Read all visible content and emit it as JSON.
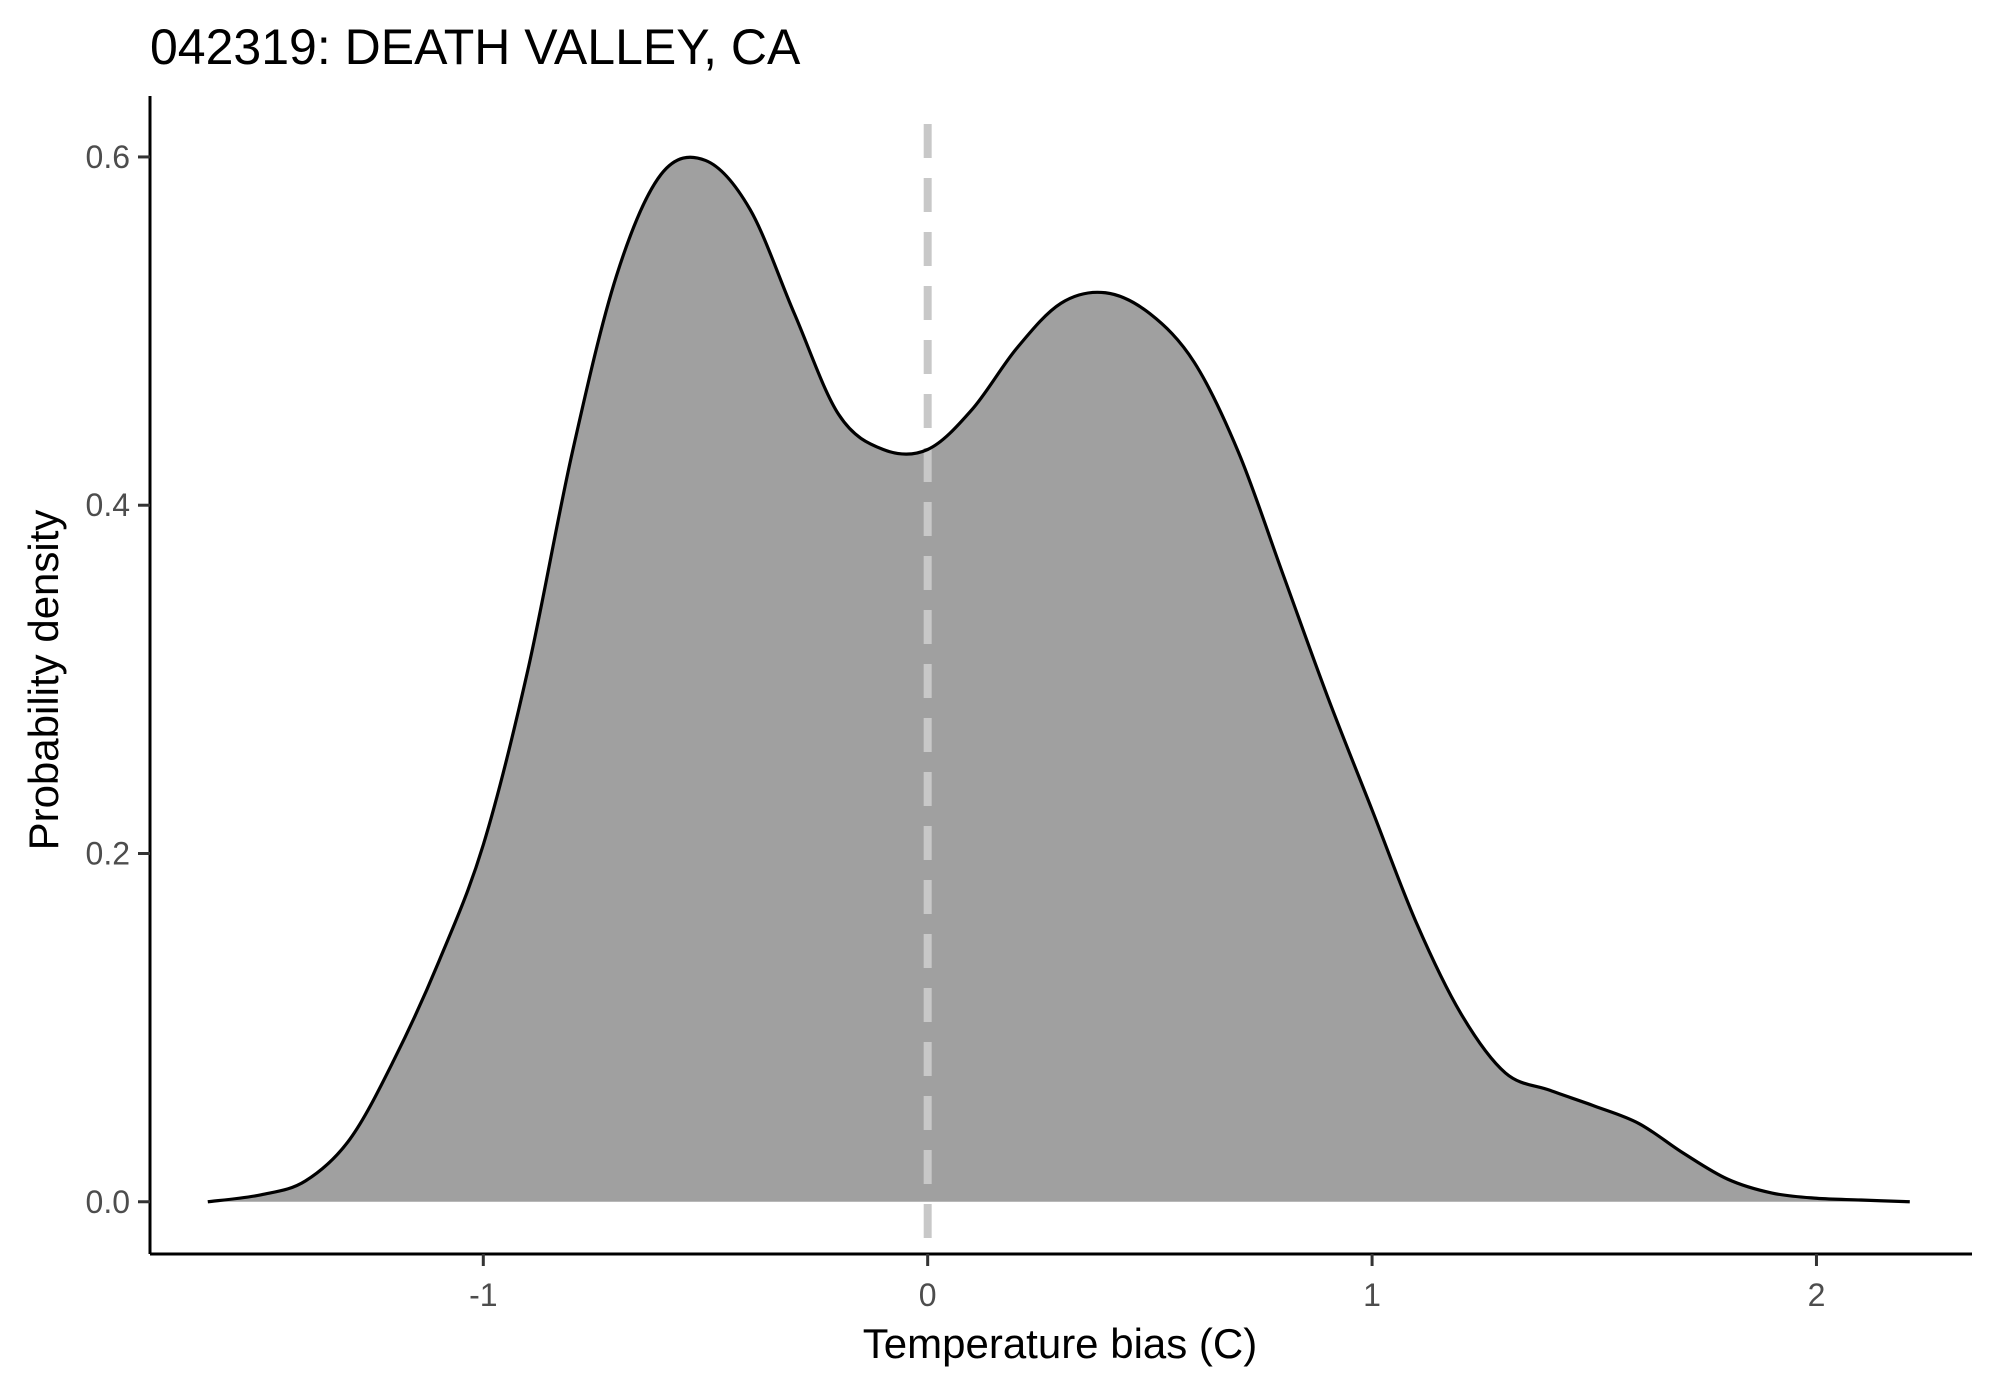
{
  "chart_data": {
    "type": "area",
    "title": "042319: DEATH VALLEY, CA",
    "xlabel": "Temperature bias (C)",
    "ylabel": "Probability density",
    "xlim": [
      -1.75,
      2.35
    ],
    "ylim": [
      -0.03,
      0.635
    ],
    "x_ticks": [
      -1,
      0,
      1,
      2
    ],
    "x_tick_labels": [
      "-1",
      "0",
      "1",
      "2"
    ],
    "y_ticks": [
      0.0,
      0.2,
      0.4,
      0.6
    ],
    "y_tick_labels": [
      "0.0",
      "0.2",
      "0.4",
      "0.6"
    ],
    "grid": false,
    "legend": "none",
    "fill_color": "#a0a0a0",
    "line_color": "#000000",
    "reference_line": {
      "x": 0,
      "style": "dashed",
      "color": "#c8c8c8"
    },
    "series": [
      {
        "x": [
          -1.62,
          -1.5,
          -1.4,
          -1.3,
          -1.2,
          -1.1,
          -1.0,
          -0.9,
          -0.8,
          -0.7,
          -0.6,
          -0.5,
          -0.4,
          -0.3,
          -0.2,
          -0.1,
          0.0,
          0.1,
          0.2,
          0.3,
          0.4,
          0.5,
          0.6,
          0.7,
          0.8,
          0.9,
          1.0,
          1.1,
          1.2,
          1.3,
          1.4,
          1.5,
          1.6,
          1.7,
          1.8,
          1.9,
          2.0,
          2.1,
          2.21
        ],
        "y": [
          0.0,
          0.004,
          0.012,
          0.036,
          0.082,
          0.138,
          0.205,
          0.305,
          0.43,
          0.532,
          0.59,
          0.598,
          0.57,
          0.51,
          0.452,
          0.432,
          0.432,
          0.455,
          0.49,
          0.516,
          0.522,
          0.51,
          0.482,
          0.43,
          0.36,
          0.29,
          0.225,
          0.16,
          0.108,
          0.074,
          0.064,
          0.055,
          0.045,
          0.028,
          0.013,
          0.005,
          0.002,
          0.001,
          0.0
        ]
      }
    ]
  }
}
